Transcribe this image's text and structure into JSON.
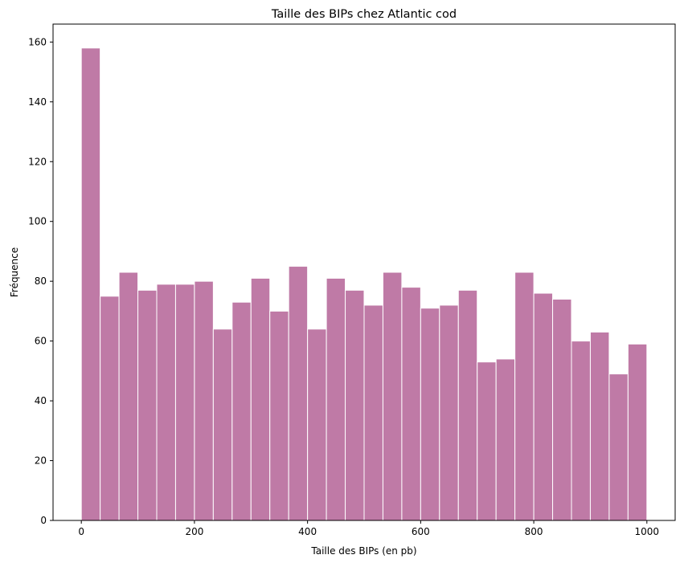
{
  "chart_data": {
    "type": "bar",
    "title": "Taille des BIPs chez Atlantic cod",
    "xlabel": "Taille des BIPs (en pb)",
    "ylabel": "Fréquence",
    "xlim": [
      -50,
      1050
    ],
    "ylim": [
      0,
      166
    ],
    "xticks": [
      0,
      200,
      400,
      600,
      800,
      1000
    ],
    "yticks": [
      0,
      20,
      40,
      60,
      80,
      100,
      120,
      140,
      160
    ],
    "bin_start": 0,
    "bin_end": 1000,
    "bin_count": 30,
    "values": [
      158,
      75,
      83,
      77,
      79,
      79,
      80,
      64,
      73,
      81,
      70,
      85,
      64,
      81,
      77,
      72,
      83,
      78,
      71,
      72,
      77,
      53,
      54,
      83,
      76,
      74,
      60,
      63,
      49,
      59
    ],
    "bar_color": "#bf7aa6",
    "edge_color": "#ffffff",
    "grid": false
  }
}
